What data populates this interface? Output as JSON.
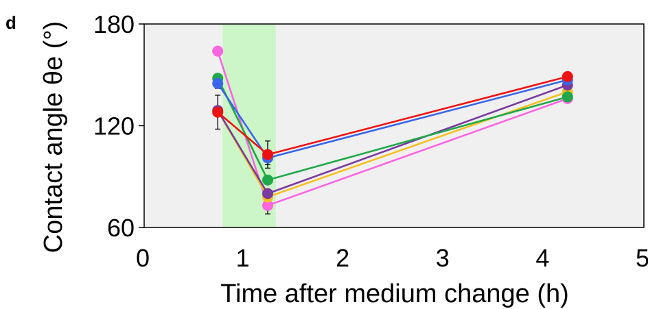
{
  "panel_label": "d",
  "chart_data": {
    "type": "line",
    "xlabel": "Time after medium change (h)",
    "ylabel": "Contact angle θe (°)",
    "xlim": [
      0,
      5
    ],
    "ylim": [
      60,
      180
    ],
    "xticks": [
      0,
      1,
      2,
      3,
      4,
      5
    ],
    "yticks": [
      60,
      120,
      180
    ],
    "x": [
      0.75,
      1.25,
      4.25
    ],
    "shaded_region": {
      "x_start": 0.8,
      "x_end": 1.33,
      "color": "#ccf5c8"
    },
    "plot_background": "#f0f0f0",
    "grid": false,
    "legend": "none",
    "series": [
      {
        "color": "#ff66e0",
        "values": [
          164,
          73,
          136
        ],
        "errors": [
          0,
          5,
          2
        ]
      },
      {
        "color": "#f5bf20",
        "values": [
          129,
          78,
          140
        ],
        "errors": [
          0,
          2,
          2
        ]
      },
      {
        "color": "#7a3a9e",
        "values": [
          129,
          80,
          144
        ],
        "errors": [
          0,
          2,
          2
        ]
      },
      {
        "color": "#1fa84a",
        "values": [
          148,
          88,
          137
        ],
        "errors": [
          0,
          2,
          2
        ]
      },
      {
        "color": "#3a66e8",
        "values": [
          145,
          101,
          147
        ],
        "errors": [
          3,
          4,
          2
        ]
      },
      {
        "color": "#ee1111",
        "values": [
          128,
          103,
          149
        ],
        "errors": [
          10,
          8,
          2
        ]
      }
    ]
  }
}
